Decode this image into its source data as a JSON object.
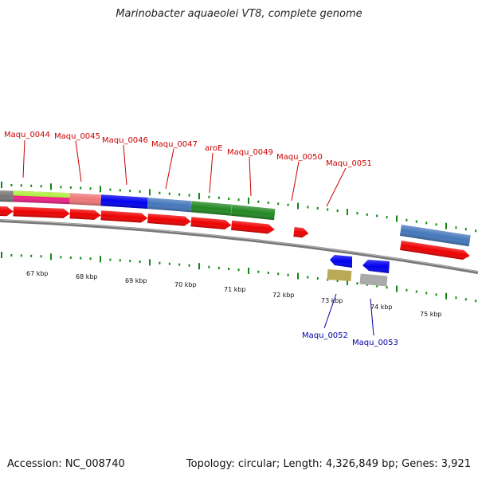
{
  "title": "Marinobacter aquaeolei VT8, complete genome",
  "footer": {
    "accession": "Accession: NC_008740",
    "topology": "Topology: circular; Length: 4,326,849 bp; Genes: 3,921"
  },
  "colors": {
    "forward_label": "#cc0000",
    "reverse_label": "#0000aa",
    "cds": "#ee0000",
    "backbone": "#777777",
    "tick": "#118811"
  },
  "kbp_ticks": [
    "67 kbp",
    "68 kbp",
    "69 kbp",
    "70 kbp",
    "71 kbp",
    "72 kbp",
    "73 kbp",
    "74 kbp",
    "75 kbp"
  ],
  "forward_labels": [
    "Maqu_0044",
    "Maqu_0045",
    "Maqu_0046",
    "Maqu_0047",
    "aroE",
    "Maqu_0049",
    "Maqu_0050",
    "Maqu_0051"
  ],
  "reverse_labels": [
    "Maqu_0052",
    "Maqu_0053"
  ],
  "forward_features": [
    {
      "start": 66.0,
      "end": 66.72,
      "color": "#777777"
    },
    {
      "start": 66.72,
      "end": 67.87,
      "color": "#ee2288",
      "color2": "#aaee33"
    },
    {
      "start": 67.87,
      "end": 68.5,
      "color": "#ee7777"
    },
    {
      "start": 68.5,
      "end": 69.45,
      "color": "#0000ee"
    },
    {
      "start": 69.45,
      "end": 70.33,
      "color": "#4477bb"
    },
    {
      "start": 70.33,
      "end": 71.15,
      "color": "#228822"
    },
    {
      "start": 71.15,
      "end": 72.03,
      "color": "#228822"
    },
    {
      "start": 74.58,
      "end": 76.0,
      "color": "#4477bb"
    }
  ]
}
